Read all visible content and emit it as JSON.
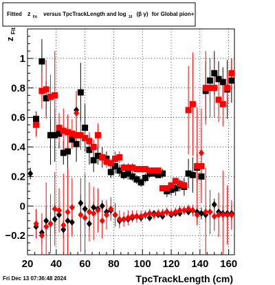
{
  "title": {
    "prefix": "Fitted",
    "z": "z",
    "z_sub": "Fit",
    "middle": "versus TpcTrackLength and log",
    "log_sub": "10",
    "beta_gamma": "(β γ)",
    "suffix": "for Global pion+"
  },
  "footer": "Fri Dec 13 07:36:48 2024",
  "chart_data": {
    "type": "scatter",
    "xlabel": "TpcTrackLength (cm)",
    "ylabel": "z",
    "ylabel_sub": "Fit",
    "xlim": [
      20,
      164
    ],
    "ylim": [
      -0.33,
      1.2
    ],
    "xticks": [
      20,
      40,
      60,
      80,
      100,
      120,
      140,
      160
    ],
    "yticks": [
      -0.2,
      0,
      0.2,
      0.4,
      0.6,
      0.8,
      1
    ],
    "ytick_labels": [
      "−0.2",
      "0",
      "0.2",
      "0.4",
      "0.6",
      "0.8",
      "1"
    ],
    "grid": true,
    "series": [
      {
        "marker": "square",
        "color": "#000000",
        "x": [
          26,
          30,
          33,
          36,
          39,
          42,
          45,
          48,
          51,
          54,
          57,
          60,
          63,
          66,
          69,
          72,
          75,
          78,
          81,
          84,
          87,
          90,
          93,
          96,
          99,
          102,
          105,
          108,
          111,
          114,
          117,
          120,
          123,
          126,
          129,
          132,
          135,
          138,
          141,
          144,
          147,
          150,
          153,
          156,
          159,
          162
        ],
        "y": [
          0.59,
          0.98,
          0.73,
          0.48,
          0.48,
          0.49,
          0.36,
          0.37,
          0.45,
          0.42,
          0.77,
          0.53,
          0.38,
          0.31,
          0.34,
          0.33,
          0.32,
          0.23,
          0.27,
          0.24,
          0.21,
          0.22,
          0.2,
          0.18,
          0.16,
          0.19,
          0.22,
          0.22,
          0.21,
          0.22,
          0.1,
          0.11,
          0.12,
          0.14,
          0.13,
          0.22,
          0.21,
          0.26,
          0.2,
          0.78,
          0.85,
          0.9,
          0.86,
          0.84,
          0.79,
          0.85
        ],
        "yerr": [
          0.05,
          0.15,
          0.12,
          0.2,
          0.18,
          0.1,
          0.08,
          0.14,
          0.06,
          0.12,
          0.2,
          0.16,
          0.1,
          0.08,
          0.06,
          0.07,
          0.05,
          0.04,
          0.05,
          0.04,
          0.03,
          0.04,
          0.03,
          0.03,
          0.03,
          0.03,
          0.03,
          0.02,
          0.02,
          0.03,
          0.04,
          0.04,
          0.05,
          0.04,
          0.06,
          0.1,
          0.12,
          0.1,
          0.08,
          0.2,
          0.15,
          0.15,
          0.12,
          0.1,
          0.2,
          0.15
        ]
      },
      {
        "marker": "diamond",
        "color": "#000000",
        "x": [
          22,
          26,
          30,
          33,
          36,
          39,
          42,
          45,
          48,
          51,
          54,
          57,
          60,
          63,
          66,
          69,
          72,
          75,
          78,
          81,
          84,
          87,
          90,
          93,
          96,
          99,
          102,
          105,
          108,
          111,
          114,
          117,
          120,
          123,
          126,
          129,
          132,
          135,
          138,
          141,
          144,
          147,
          150,
          153,
          156,
          159,
          162
        ],
        "y": [
          0.22,
          -0.14,
          -0.18,
          -0.1,
          -0.12,
          -0.09,
          -0.06,
          -0.16,
          -0.1,
          -0.11,
          0.65,
          0.02,
          -0.02,
          -0.12,
          -0.01,
          -0.02,
          0.0,
          -0.04,
          -0.03,
          -0.06,
          -0.1,
          -0.09,
          -0.09,
          -0.08,
          -0.07,
          -0.08,
          -0.06,
          -0.08,
          -0.05,
          -0.06,
          -0.07,
          -0.04,
          -0.06,
          -0.05,
          -0.05,
          -0.03,
          -0.04,
          -0.03,
          -0.04,
          -0.05,
          -0.06,
          -0.04,
          0.01,
          -0.04,
          -0.05,
          -0.05,
          -0.05
        ],
        "yerr": [
          0.04,
          0.05,
          0.08,
          0.1,
          0.08,
          0.1,
          0.07,
          0.06,
          0.05,
          0.08,
          0.1,
          0.06,
          0.05,
          0.05,
          0.04,
          0.04,
          0.04,
          0.03,
          0.03,
          0.03,
          0.03,
          0.02,
          0.02,
          0.02,
          0.02,
          0.02,
          0.02,
          0.02,
          0.02,
          0.02,
          0.02,
          0.02,
          0.02,
          0.02,
          0.02,
          0.02,
          0.02,
          0.03,
          0.03,
          0.04,
          0.05,
          0.05,
          0.04,
          0.04,
          0.05,
          0.05,
          0.05
        ]
      },
      {
        "marker": "square",
        "color": "#ff0000",
        "x": [
          26,
          30,
          33,
          36,
          39,
          42,
          45,
          48,
          51,
          54,
          57,
          60,
          63,
          66,
          69,
          72,
          75,
          78,
          81,
          84,
          87,
          90,
          93,
          96,
          99,
          102,
          105,
          108,
          111,
          114,
          117,
          120,
          123,
          126,
          129,
          132,
          135,
          138,
          141,
          144,
          147,
          150,
          153,
          156,
          159,
          162
        ],
        "y": [
          0.55,
          0.78,
          0.79,
          0.74,
          0.75,
          0.53,
          0.51,
          0.5,
          0.49,
          0.48,
          0.48,
          0.46,
          0.44,
          0.4,
          0.48,
          0.33,
          0.3,
          0.29,
          0.32,
          0.33,
          0.26,
          0.26,
          0.26,
          0.25,
          0.25,
          0.25,
          0.24,
          0.24,
          0.24,
          0.12,
          0.12,
          0.14,
          0.17,
          0.15,
          0.14,
          0.65,
          0.69,
          0.27,
          0.27,
          0.8,
          0.8,
          0.8,
          0.72,
          0.69,
          0.8,
          0.9
        ],
        "yerr": [
          0.08,
          0.12,
          0.2,
          0.15,
          0.3,
          0.1,
          0.15,
          0.12,
          0.1,
          0.08,
          0.1,
          0.08,
          0.06,
          0.05,
          0.08,
          0.04,
          0.04,
          0.03,
          0.05,
          0.04,
          0.03,
          0.03,
          0.03,
          0.02,
          0.02,
          0.02,
          0.02,
          0.02,
          0.02,
          0.02,
          0.02,
          0.02,
          0.02,
          0.02,
          0.02,
          0.3,
          0.35,
          0.4,
          0.25,
          0.25,
          0.2,
          0.2,
          0.15,
          0.15,
          0.1,
          0.1
        ]
      },
      {
        "marker": "diamond",
        "color": "#ff0000",
        "x": [
          26,
          30,
          33,
          36,
          39,
          42,
          45,
          48,
          51,
          54,
          57,
          60,
          63,
          66,
          69,
          72,
          75,
          78,
          81,
          84,
          87,
          90,
          93,
          96,
          99,
          102,
          105,
          108,
          111,
          114,
          117,
          120,
          123,
          126,
          129,
          132,
          135,
          138,
          141,
          144,
          147,
          150,
          153,
          156,
          159,
          162
        ],
        "y": [
          -0.12,
          -0.2,
          -0.14,
          -0.12,
          -0.02,
          -0.03,
          -0.13,
          -0.04,
          -0.01,
          0.63,
          -0.06,
          -0.08,
          -0.04,
          -0.05,
          -0.03,
          -0.1,
          -0.06,
          -0.02,
          -0.06,
          -0.09,
          -0.09,
          -0.08,
          -0.07,
          -0.07,
          -0.07,
          -0.06,
          -0.05,
          -0.06,
          -0.05,
          -0.05,
          -0.04,
          -0.05,
          -0.04,
          -0.03,
          -0.03,
          -0.02,
          -0.03,
          -0.06,
          0.36,
          -0.04,
          -0.04,
          -0.07,
          -0.06,
          -0.06,
          -0.06,
          -0.06
        ],
        "yerr": [
          0.1,
          0.15,
          0.3,
          0.2,
          0.25,
          0.15,
          0.35,
          0.3,
          0.2,
          0.15,
          0.25,
          0.3,
          0.2,
          0.18,
          0.15,
          0.12,
          0.1,
          0.08,
          0.08,
          0.06,
          0.05,
          0.05,
          0.04,
          0.04,
          0.04,
          0.03,
          0.03,
          0.03,
          0.03,
          0.03,
          0.03,
          0.03,
          0.03,
          0.03,
          0.03,
          0.03,
          0.04,
          0.05,
          0.3,
          0.3,
          0.15,
          0.1,
          0.15,
          0.3,
          0.2,
          0.1
        ]
      }
    ]
  }
}
